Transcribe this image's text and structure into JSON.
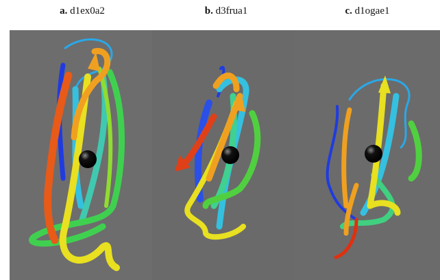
{
  "panels": [
    {
      "letter": "a.",
      "name": "d1ex0a2"
    },
    {
      "letter": "b.",
      "name": "d3frua1"
    },
    {
      "letter": "c.",
      "name": "d1ogae1"
    }
  ]
}
